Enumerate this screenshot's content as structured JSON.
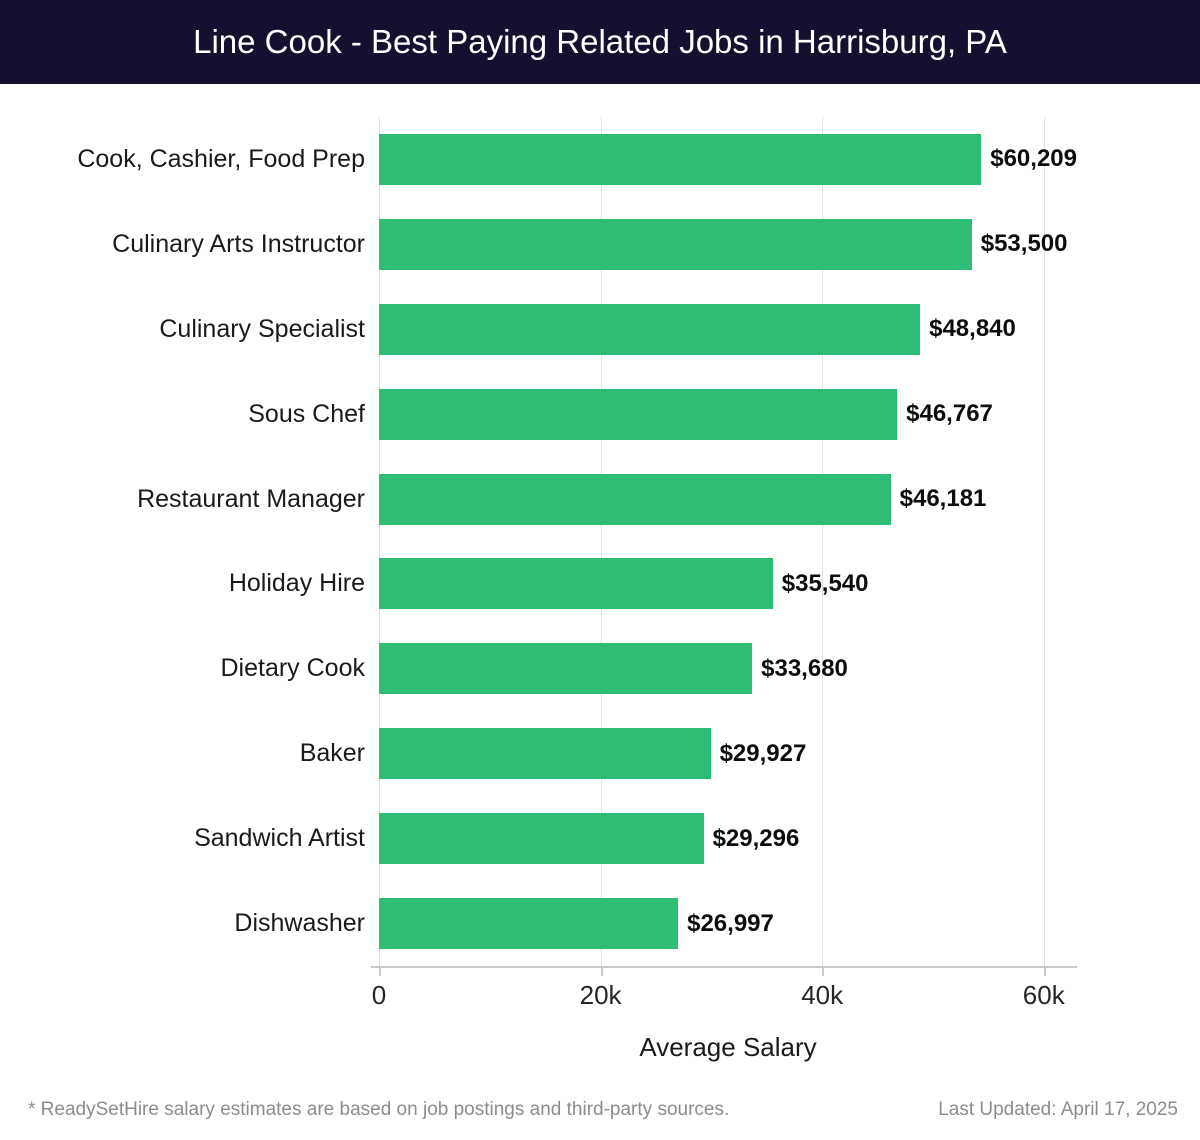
{
  "header": {
    "title": "Line Cook - Best Paying Related Jobs in Harrisburg, PA"
  },
  "chart_data": {
    "type": "bar",
    "orientation": "horizontal",
    "title": "Line Cook - Best Paying Related Jobs in Harrisburg, PA",
    "categories": [
      "Cook, Cashier, Food Prep",
      "Culinary Arts Instructor",
      "Culinary Specialist",
      "Sous Chef",
      "Restaurant Manager",
      "Holiday Hire",
      "Dietary Cook",
      "Baker",
      "Sandwich Artist",
      "Dishwasher"
    ],
    "values": [
      60209,
      53500,
      48840,
      46767,
      46181,
      35540,
      33680,
      29927,
      29296,
      26997
    ],
    "value_labels": [
      "$60,209",
      "$53,500",
      "$48,840",
      "$46,767",
      "$46,181",
      "$35,540",
      "$33,680",
      "$29,927",
      "$29,296",
      "$26,997"
    ],
    "xlabel": "Average Salary",
    "xlim": [
      0,
      63000
    ],
    "x_ticks": [
      {
        "value": 0,
        "label": "0"
      },
      {
        "value": 20000,
        "label": "20k"
      },
      {
        "value": 40000,
        "label": "40k"
      },
      {
        "value": 60000,
        "label": "60k"
      }
    ],
    "grid": "vertical",
    "legend": "none"
  },
  "colors": {
    "header_bg": "#141130",
    "bar": "#2EBD74",
    "grid": "#e0e0e0",
    "axis": "#c9c9c9"
  },
  "footer": {
    "disclaimer": "* ReadySetHire salary estimates are based on job postings and third-party sources.",
    "last_updated": "Last Updated: April 17, 2025"
  }
}
